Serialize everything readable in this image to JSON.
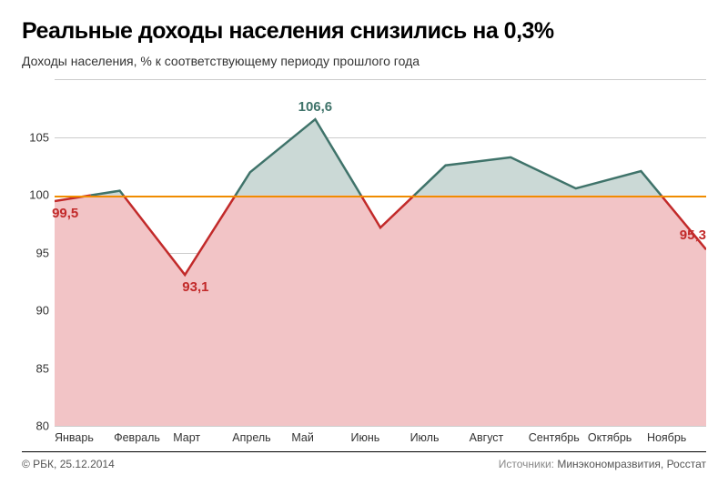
{
  "title": "Реальные доходы населения снизились на 0,3%",
  "subtitle": "Доходы населения, % к соответствующему периоду прошлого года",
  "chart": {
    "type": "area-line",
    "ylim": [
      80,
      110
    ],
    "ytick_step": 5,
    "yticks_visible": [
      80,
      85,
      90,
      95,
      100,
      105
    ],
    "baseline_value": 100,
    "baseline_color": "#f08c00",
    "x_labels": [
      "Январь",
      "Февраль",
      "Март",
      "Апрель",
      "Май",
      "Июнь",
      "Июль",
      "Август",
      "Сентябрь",
      "Октябрь",
      "Ноябрь"
    ],
    "values": [
      99.5,
      100.4,
      93.1,
      102.0,
      106.6,
      97.2,
      102.6,
      103.3,
      100.6,
      102.1,
      95.3
    ],
    "upper_fill": "#cbd9d6",
    "lower_fill": "#f2c4c6",
    "upper_line_color": "#3f736a",
    "lower_line_color": "#c22a2a",
    "line_width": 2.5,
    "grid_color": "#cccccc",
    "background_color": "#ffffff",
    "labels": [
      {
        "index": 0,
        "text": "99,5",
        "color": "#c22a2a",
        "pos": "below"
      },
      {
        "index": 2,
        "text": "93,1",
        "color": "#c22a2a",
        "pos": "below"
      },
      {
        "index": 4,
        "text": "106,6",
        "color": "#3f736a",
        "pos": "above"
      },
      {
        "index": 10,
        "text": "95,3",
        "color": "#c22a2a",
        "pos": "right"
      }
    ]
  },
  "footer_left": "© РБК, 25.12.2014",
  "footer_sources_label": "Источники:",
  "footer_sources": "Минэкономразвития, Росстат"
}
